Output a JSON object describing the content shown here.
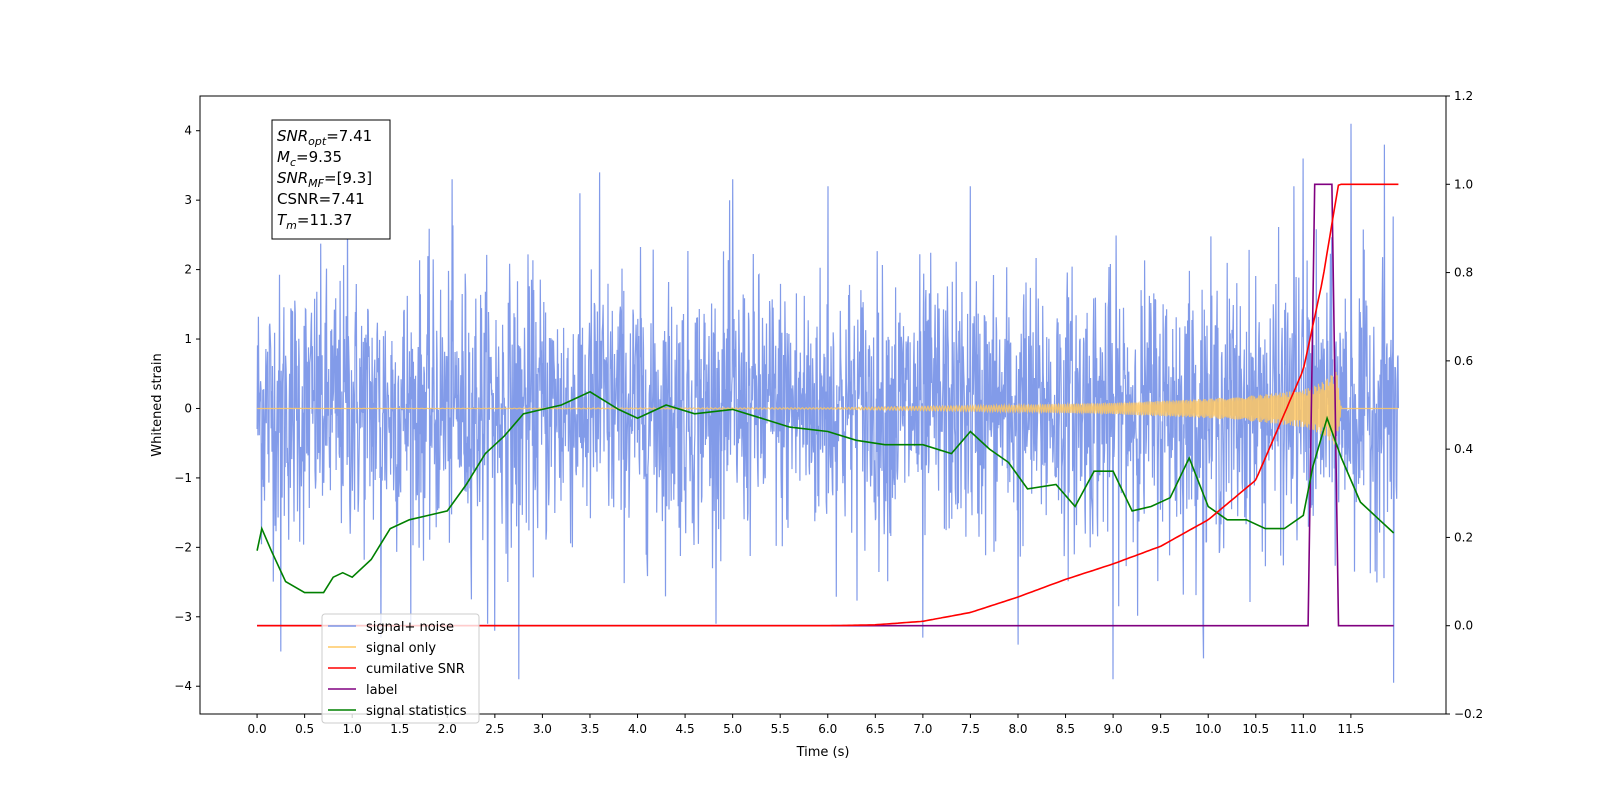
{
  "chart_data": {
    "type": "line",
    "xlabel": "Time (s)",
    "ylabel": "Whitened strain",
    "xlim": [
      -0.6,
      12.5
    ],
    "ylim_left": [
      -4.4,
      4.5
    ],
    "ylim_right": [
      -0.2,
      1.2
    ],
    "x_ticks": [
      0.0,
      0.5,
      1.0,
      1.5,
      2.0,
      2.5,
      3.0,
      3.5,
      4.0,
      4.5,
      5.0,
      5.5,
      6.0,
      6.5,
      7.0,
      7.5,
      8.0,
      8.5,
      9.0,
      9.5,
      10.0,
      10.5,
      11.0,
      11.5
    ],
    "x_tick_labels": [
      "0.0",
      "0.5",
      "1.0",
      "1.5",
      "2.0",
      "2.5",
      "3.0",
      "3.5",
      "4.0",
      "4.5",
      "5.0",
      "5.5",
      "6.0",
      "6.5",
      "7.0",
      "7.5",
      "8.0",
      "8.5",
      "9.0",
      "9.5",
      "10.0",
      "10.5",
      "11.0",
      "11.5"
    ],
    "y_ticks_left": [
      -4,
      -3,
      -2,
      -1,
      0,
      1,
      2,
      3,
      4
    ],
    "y_tick_labels_left": [
      "−4",
      "−3",
      "−2",
      "−1",
      "0",
      "1",
      "2",
      "3",
      "4"
    ],
    "y_ticks_right": [
      -0.2,
      0.0,
      0.2,
      0.4,
      0.6,
      0.8,
      1.0,
      1.2
    ],
    "y_tick_labels_right": [
      "−0.2",
      "0.0",
      "0.2",
      "0.4",
      "0.6",
      "0.8",
      "1.0",
      "1.2"
    ],
    "annotation": {
      "lines": [
        {
          "main": "SNR",
          "sub": "opt",
          "rest": "=7.41"
        },
        {
          "main": "M",
          "sub": "c",
          "rest": "=9.35"
        },
        {
          "main": "SNR",
          "sub": "MF",
          "rest": "=[9.3]"
        },
        {
          "main": "CSNR",
          "sub": "",
          "rest": "=7.41"
        },
        {
          "main": "T",
          "sub": "m",
          "rest": "=11.37"
        }
      ]
    },
    "legend": {
      "placement": "lower-left",
      "entries": [
        {
          "label": "signal+ noise",
          "color": "#7b96e8"
        },
        {
          "label": "signal only",
          "color": "#ffc864"
        },
        {
          "label": "cumilative SNR",
          "color": "#ff0000"
        },
        {
          "label": "label",
          "color": "#800080"
        },
        {
          "label": "signal statistics",
          "color": "#008000"
        }
      ]
    },
    "series": [
      {
        "name": "signal+ noise",
        "axis": "left",
        "color": "#7b96e8",
        "x_range": [
          0.0,
          12.0
        ],
        "noise_sigma": 1.0,
        "peaks": [
          [
            0.25,
            -3.5
          ],
          [
            0.95,
            2.9
          ],
          [
            1.3,
            -3.3
          ],
          [
            2.05,
            3.3
          ],
          [
            2.5,
            -3.2
          ],
          [
            2.75,
            -3.9
          ],
          [
            3.6,
            3.4
          ],
          [
            5.0,
            3.3
          ],
          [
            6.0,
            3.2
          ],
          [
            7.0,
            -3.3
          ],
          [
            7.5,
            3.2
          ],
          [
            8.0,
            -3.4
          ],
          [
            9.0,
            -3.9
          ],
          [
            9.95,
            -3.6
          ],
          [
            10.9,
            3.2
          ],
          [
            11.0,
            3.6
          ],
          [
            11.5,
            4.1
          ],
          [
            11.85,
            3.8
          ],
          [
            11.95,
            -3.95
          ]
        ]
      },
      {
        "name": "signal only",
        "axis": "left",
        "color": "#ffc864",
        "x": [
          0.0,
          6.0,
          7.0,
          8.0,
          9.0,
          10.0,
          10.5,
          11.0,
          11.2,
          11.35,
          11.4,
          12.0
        ],
        "envelope": [
          0.0,
          0.01,
          0.03,
          0.05,
          0.08,
          0.14,
          0.19,
          0.27,
          0.38,
          0.55,
          0.0,
          0.0
        ]
      },
      {
        "name": "cumilative SNR",
        "axis": "right",
        "color": "#ff0000",
        "x": [
          0.0,
          6.0,
          6.5,
          7.0,
          7.5,
          8.0,
          8.5,
          9.0,
          9.5,
          10.0,
          10.5,
          11.0,
          11.2,
          11.37,
          12.0
        ],
        "y": [
          0.0,
          0.0,
          0.002,
          0.01,
          0.03,
          0.065,
          0.105,
          0.14,
          0.18,
          0.24,
          0.33,
          0.58,
          0.78,
          1.0,
          1.0
        ]
      },
      {
        "name": "label",
        "axis": "right",
        "color": "#800080",
        "x": [
          0.0,
          11.05,
          11.12,
          11.3,
          11.37,
          11.95
        ],
        "y": [
          0.0,
          0.0,
          1.0,
          1.0,
          0.0,
          0.0
        ]
      },
      {
        "name": "signal statistics",
        "axis": "right",
        "color": "#008000",
        "x": [
          0.0,
          0.05,
          0.15,
          0.3,
          0.5,
          0.7,
          0.8,
          0.9,
          1.0,
          1.2,
          1.4,
          1.6,
          1.8,
          2.0,
          2.2,
          2.4,
          2.6,
          2.8,
          3.0,
          3.2,
          3.5,
          3.8,
          4.0,
          4.3,
          4.6,
          5.0,
          5.3,
          5.6,
          6.0,
          6.3,
          6.6,
          7.0,
          7.3,
          7.5,
          7.7,
          7.9,
          8.1,
          8.4,
          8.6,
          8.8,
          9.0,
          9.2,
          9.4,
          9.6,
          9.8,
          10.0,
          10.2,
          10.4,
          10.6,
          10.8,
          11.0,
          11.1,
          11.25,
          11.4,
          11.6,
          11.8,
          11.95
        ],
        "y": [
          0.17,
          0.22,
          0.17,
          0.1,
          0.075,
          0.075,
          0.11,
          0.12,
          0.11,
          0.15,
          0.22,
          0.24,
          0.25,
          0.26,
          0.32,
          0.39,
          0.43,
          0.48,
          0.49,
          0.5,
          0.53,
          0.49,
          0.47,
          0.5,
          0.48,
          0.49,
          0.47,
          0.45,
          0.44,
          0.42,
          0.41,
          0.41,
          0.39,
          0.44,
          0.4,
          0.37,
          0.31,
          0.32,
          0.27,
          0.35,
          0.35,
          0.26,
          0.27,
          0.29,
          0.38,
          0.27,
          0.24,
          0.24,
          0.22,
          0.22,
          0.25,
          0.36,
          0.47,
          0.38,
          0.28,
          0.24,
          0.21
        ]
      }
    ]
  }
}
